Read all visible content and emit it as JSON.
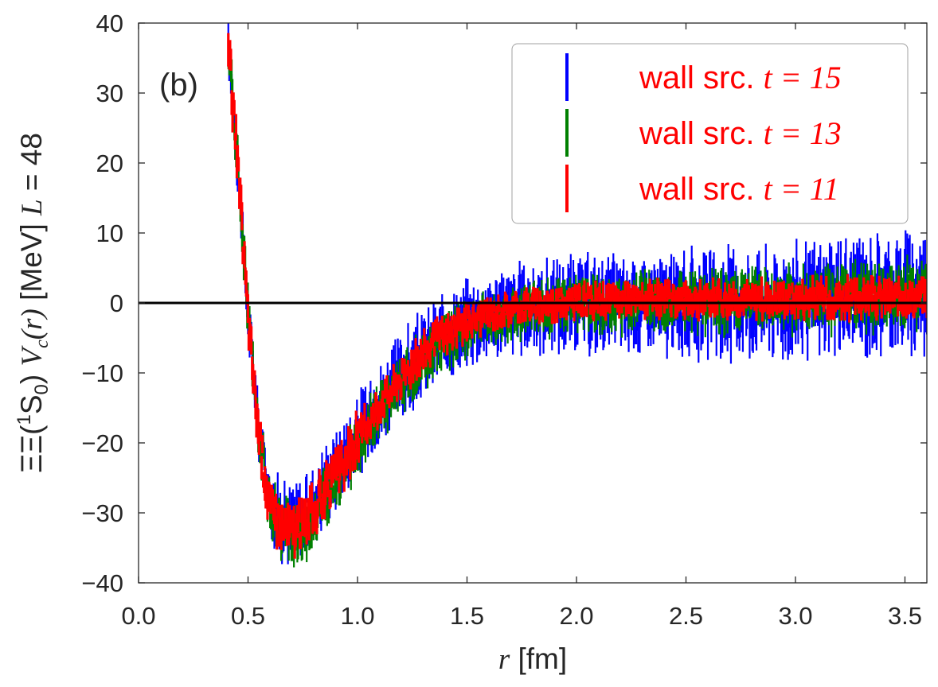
{
  "chart_data": {
    "type": "scatter",
    "panel_label": "(b)",
    "xlabel": {
      "var": "r",
      "unit": " [fm]"
    },
    "ylabel": {
      "prefix": "ΞΞ(",
      "sup": "1",
      "state": "S",
      "sub": "0",
      "suffix": ") ",
      "var": "V",
      "var_sub": "c",
      "var_arg": "(r)",
      "unit": " [MeV] ",
      "size_var": "L",
      "size_eq": " = 48"
    },
    "xlim": [
      0.0,
      3.6
    ],
    "ylim": [
      -40,
      40
    ],
    "xticks": [
      "0.0",
      "0.5",
      "1.0",
      "1.5",
      "2.0",
      "2.5",
      "3.0",
      "3.5"
    ],
    "yticks": [
      "40",
      "30",
      "20",
      "10",
      "0",
      "−10",
      "−20",
      "−30",
      "−40"
    ],
    "zero_line": 0,
    "legend": {
      "placement": "top-right"
    },
    "series": [
      {
        "name": "wall src.",
        "t_label": "t = 15",
        "color": "#0000ff",
        "noise_scale": 1.0,
        "x": [
          0.41,
          0.45,
          0.5,
          0.55,
          0.6,
          0.65,
          0.7,
          0.75,
          0.8,
          0.9,
          1.0,
          1.1,
          1.2,
          1.3,
          1.4,
          1.5,
          1.6,
          1.7,
          1.8,
          2.0,
          2.2,
          2.4,
          2.6,
          2.8,
          3.0,
          3.2,
          3.4,
          3.6
        ],
        "y": [
          37,
          21,
          -2,
          -18,
          -28,
          -31,
          -31.5,
          -30.5,
          -28.5,
          -24,
          -19,
          -14.5,
          -10.5,
          -7.5,
          -5,
          -3,
          -1.8,
          -1,
          -0.5,
          -0.2,
          -0.3,
          -0.4,
          -0.3,
          0,
          0.3,
          0.7,
          1.3,
          2
        ]
      },
      {
        "name": "wall src.",
        "t_label": "t = 13",
        "color": "#008000",
        "noise_scale": 0.5,
        "x": [
          0.41,
          0.45,
          0.5,
          0.55,
          0.6,
          0.65,
          0.7,
          0.75,
          0.8,
          0.9,
          1.0,
          1.1,
          1.2,
          1.3,
          1.4,
          1.5,
          1.6,
          1.7,
          1.8,
          2.0,
          2.2,
          2.4,
          2.6,
          2.8,
          3.0,
          3.2,
          3.4,
          3.6
        ],
        "y": [
          37,
          21,
          -2,
          -19,
          -29,
          -32.5,
          -33,
          -32.5,
          -30.5,
          -26,
          -20.5,
          -15.5,
          -11.5,
          -8,
          -5.5,
          -3.5,
          -2.2,
          -1.3,
          -0.8,
          -0.3,
          -0.1,
          0,
          0.1,
          0.3,
          0.5,
          0.7,
          1,
          1.2
        ]
      },
      {
        "name": "wall src.",
        "t_label": "t = 11",
        "color": "#ff0000",
        "noise_scale": 0.2,
        "x": [
          0.41,
          0.45,
          0.5,
          0.55,
          0.6,
          0.65,
          0.7,
          0.75,
          0.8,
          0.9,
          1.0,
          1.1,
          1.2,
          1.3,
          1.4,
          1.5,
          1.6,
          1.7,
          1.8,
          2.0,
          2.2,
          2.4,
          2.6,
          2.8,
          3.0,
          3.2,
          3.4,
          3.6
        ],
        "y": [
          37,
          21,
          -2,
          -19,
          -29,
          -32,
          -32.3,
          -31.5,
          -29.5,
          -25,
          -19.5,
          -14.5,
          -10.5,
          -7,
          -4.5,
          -2.7,
          -1.5,
          -0.7,
          -0.2,
          0.2,
          0.4,
          0.5,
          0.5,
          0.6,
          0.6,
          0.7,
          0.8,
          0.9
        ]
      }
    ]
  }
}
